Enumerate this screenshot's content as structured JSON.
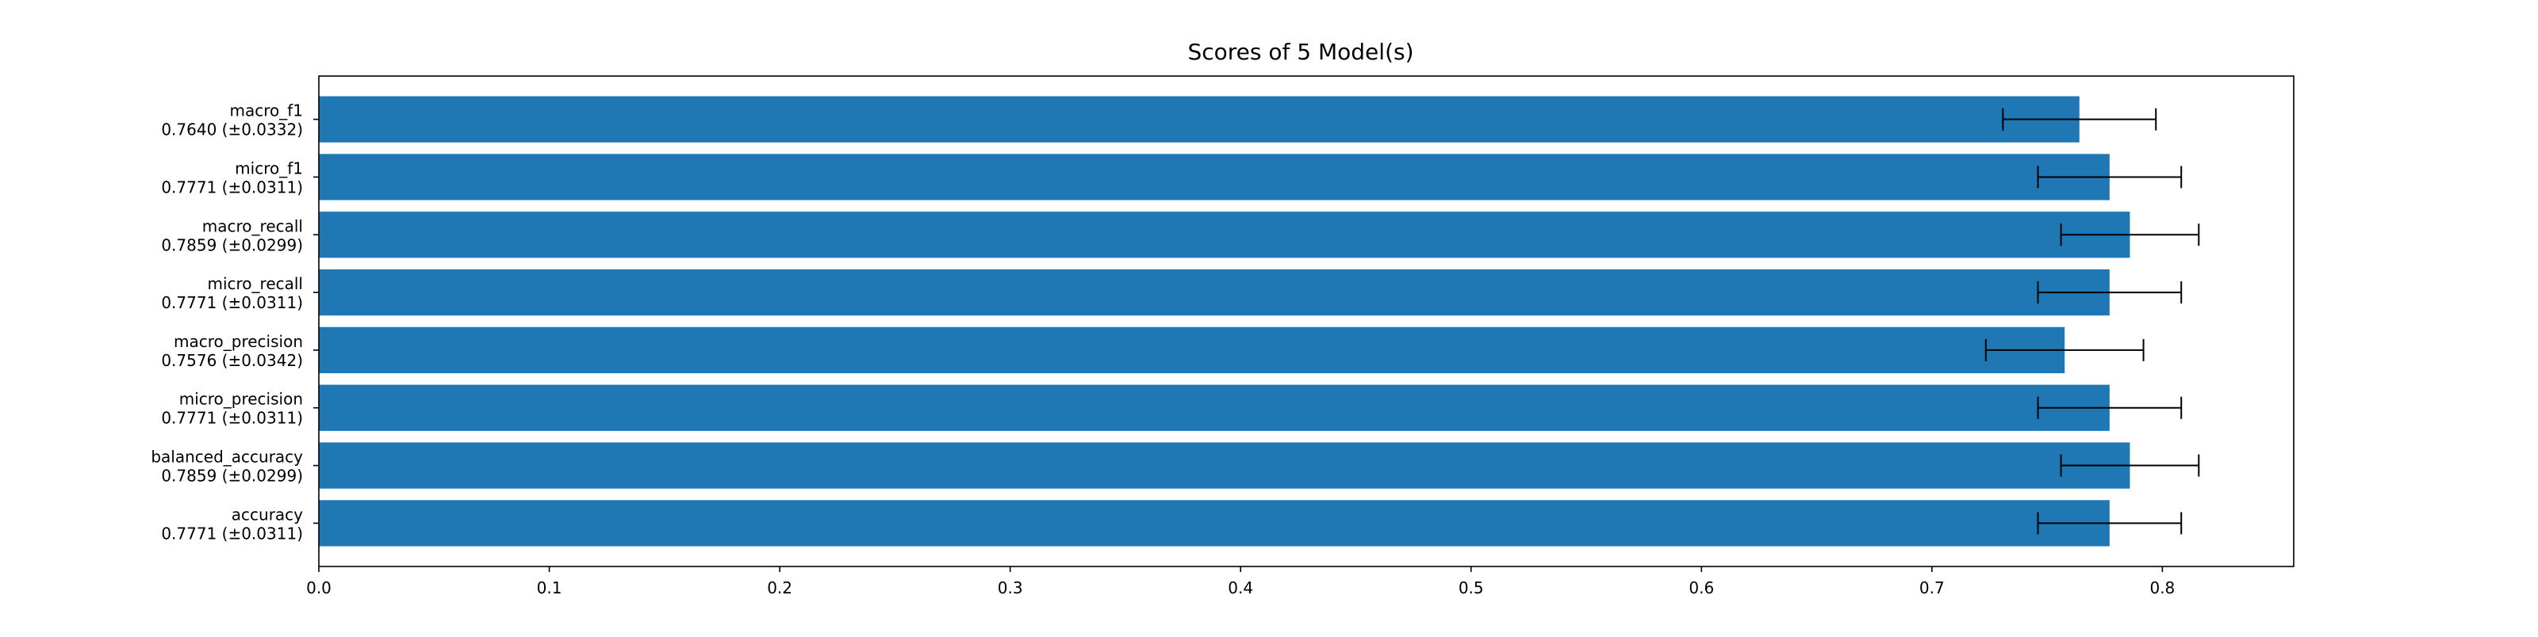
{
  "chart_data": {
    "type": "bar",
    "orientation": "horizontal",
    "title": "Scores of 5 Model(s)",
    "xlabel": "",
    "ylabel": "",
    "xlim": [
      0.0,
      0.857
    ],
    "xticks": [
      0.0,
      0.1,
      0.2,
      0.3,
      0.4,
      0.5,
      0.6,
      0.7,
      0.8
    ],
    "xtick_labels": [
      "0.0",
      "0.1",
      "0.2",
      "0.3",
      "0.4",
      "0.5",
      "0.6",
      "0.7",
      "0.8"
    ],
    "grid": false,
    "bar_color": "#1f77b4",
    "errorbar_color": "#000000",
    "categories": [
      "macro_f1",
      "micro_f1",
      "macro_recall",
      "micro_recall",
      "macro_precision",
      "micro_precision",
      "balanced_accuracy",
      "accuracy"
    ],
    "value_labels": [
      "0.7640 (±0.0332)",
      "0.7771 (±0.0311)",
      "0.7859 (±0.0299)",
      "0.7771 (±0.0311)",
      "0.7576 (±0.0342)",
      "0.7771 (±0.0311)",
      "0.7859 (±0.0299)",
      "0.7771 (±0.0311)"
    ],
    "values": [
      0.764,
      0.7771,
      0.7859,
      0.7771,
      0.7576,
      0.7771,
      0.7859,
      0.7771
    ],
    "errors": [
      0.0332,
      0.0311,
      0.0299,
      0.0311,
      0.0342,
      0.0311,
      0.0299,
      0.0311
    ]
  }
}
